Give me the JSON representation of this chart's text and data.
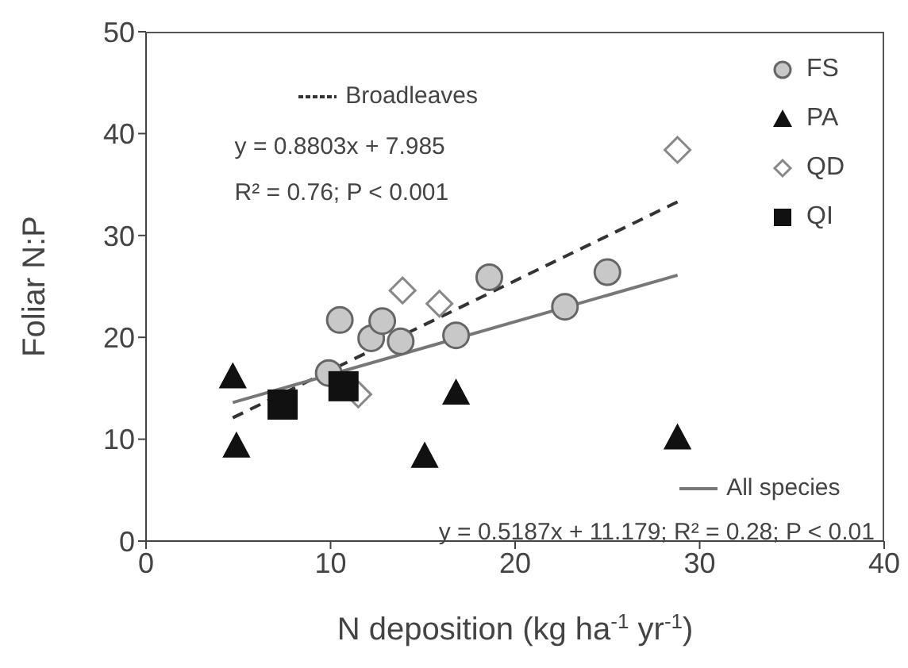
{
  "chart_data": {
    "type": "scatter",
    "xlabel": "N deposition (kg ha$^{-1}$ yr$^{-1}$)",
    "ylabel": "Foliar N:P",
    "xlim": [
      0,
      40
    ],
    "xticks": [
      0,
      10,
      20,
      30,
      40
    ],
    "ylim": [
      0,
      50
    ],
    "yticks": [
      0,
      10,
      20,
      30,
      40,
      50
    ],
    "grid": false,
    "legend": "top right",
    "series": [
      {
        "name": "FS",
        "type": "scatter",
        "marker": "circle",
        "color": "#c8c8c8",
        "x": [
          9.9,
          10.5,
          12.2,
          12.8,
          13.8,
          16.8,
          18.6,
          22.7,
          25.0
        ],
        "values": [
          16.5,
          21.7,
          19.9,
          21.6,
          19.6,
          20.2,
          25.9,
          23.0,
          26.4
        ]
      },
      {
        "name": "PA",
        "type": "scatter",
        "marker": "triangle",
        "color": "#111111",
        "x": [
          4.7,
          4.9,
          15.1,
          16.8,
          28.8
        ],
        "values": [
          16.0,
          9.2,
          8.2,
          14.4,
          10.0
        ]
      },
      {
        "name": "QD",
        "type": "scatter",
        "marker": "diamond",
        "color": "#888888",
        "x": [
          11.5,
          13.9,
          15.9,
          28.8
        ],
        "values": [
          14.4,
          24.6,
          23.3,
          38.4
        ]
      },
      {
        "name": "QI",
        "type": "scatter",
        "marker": "square",
        "color": "#111111",
        "x": [
          7.4,
          10.7
        ],
        "values": [
          13.4,
          15.2
        ]
      },
      {
        "name": "Broadleaves",
        "type": "line",
        "line_style": "dashed",
        "color": "#333333",
        "x": [
          4.7,
          28.8
        ],
        "values": [
          12.1,
          33.3
        ]
      },
      {
        "name": "All species",
        "type": "line",
        "line_style": "solid",
        "color": "#777777",
        "x": [
          4.7,
          28.8
        ],
        "values": [
          13.6,
          26.1
        ]
      }
    ],
    "annotations": [
      "y = 0.8803x + 7.985",
      "R² = 0.76; P < 0.001",
      "y = 0.5187x + 11.179; R² = 0.28; P < 0.01"
    ]
  }
}
